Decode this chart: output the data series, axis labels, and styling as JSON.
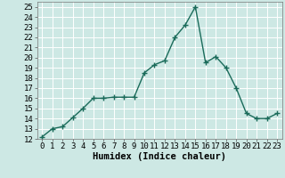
{
  "x": [
    0,
    1,
    2,
    3,
    4,
    5,
    6,
    7,
    8,
    9,
    10,
    11,
    12,
    13,
    14,
    15,
    16,
    17,
    18,
    19,
    20,
    21,
    22,
    23
  ],
  "y": [
    12.2,
    13.0,
    13.2,
    14.1,
    15.0,
    16.0,
    16.0,
    16.1,
    16.1,
    16.1,
    18.5,
    19.3,
    19.7,
    22.0,
    23.2,
    25.0,
    19.5,
    20.1,
    19.0,
    17.0,
    14.5,
    14.0,
    14.0,
    14.5
  ],
  "line_color": "#1a6b5a",
  "marker": "+",
  "marker_size": 4,
  "marker_linewidth": 1.0,
  "line_width": 1.0,
  "xlabel": "Humidex (Indice chaleur)",
  "ylim": [
    12,
    25.5
  ],
  "xlim": [
    -0.5,
    23.5
  ],
  "yticks": [
    12,
    13,
    14,
    15,
    16,
    17,
    18,
    19,
    20,
    21,
    22,
    23,
    24,
    25
  ],
  "xticks": [
    0,
    1,
    2,
    3,
    4,
    5,
    6,
    7,
    8,
    9,
    10,
    11,
    12,
    13,
    14,
    15,
    16,
    17,
    18,
    19,
    20,
    21,
    22,
    23
  ],
  "background_color": "#cde8e4",
  "grid_color": "#b0d8d2",
  "tick_labelsize": 6.5,
  "xlabel_fontsize": 7.5
}
